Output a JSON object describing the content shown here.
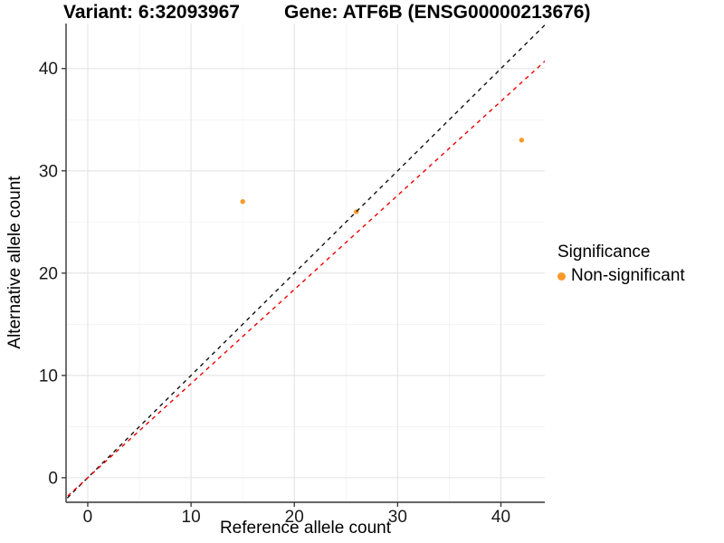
{
  "titles": {
    "variant": "Variant: 6:32093967",
    "gene": "Gene: ATF6B (ENSG00000213676)"
  },
  "axes": {
    "x_label": "Reference allele count",
    "y_label": "Alternative allele count"
  },
  "legend": {
    "title": "Significance",
    "items": [
      {
        "label": "Non-significant",
        "color": "#F89A28"
      }
    ]
  },
  "chart_data": {
    "type": "scatter",
    "title_left": "Variant: 6:32093967",
    "title_right": "Gene: ATF6B (ENSG00000213676)",
    "xlabel": "Reference allele count",
    "ylabel": "Alternative allele count",
    "x_domain": [
      -2.1,
      44.25
    ],
    "y_domain": [
      -2.4,
      44.4
    ],
    "x_ticks": [
      0,
      10,
      20,
      30,
      40
    ],
    "y_ticks": [
      0,
      10,
      20,
      30,
      40
    ],
    "x_minor_ticks": [
      5,
      15,
      25,
      35
    ],
    "y_minor_ticks": [
      5,
      15,
      25,
      35
    ],
    "grid": "on",
    "legend_position": "right",
    "series": [
      {
        "name": "Non-significant",
        "color": "#F89A28",
        "points": [
          {
            "x": 15,
            "y": 27
          },
          {
            "x": 26,
            "y": 26
          },
          {
            "x": 42,
            "y": 33
          }
        ]
      }
    ],
    "reference_lines": [
      {
        "name": "identity-line",
        "slope": 1.0,
        "intercept": 0,
        "color": "#111111",
        "style": "dashed"
      },
      {
        "name": "expected-ratio-line",
        "slope": 0.92,
        "intercept": 0,
        "color": "#F00000",
        "style": "dashed"
      }
    ],
    "colors": {
      "major_grid": "#E4E4E4",
      "minor_grid": "#F1F1F1",
      "axis_line": "#333333",
      "tick_label": "#1a1a1a"
    }
  }
}
